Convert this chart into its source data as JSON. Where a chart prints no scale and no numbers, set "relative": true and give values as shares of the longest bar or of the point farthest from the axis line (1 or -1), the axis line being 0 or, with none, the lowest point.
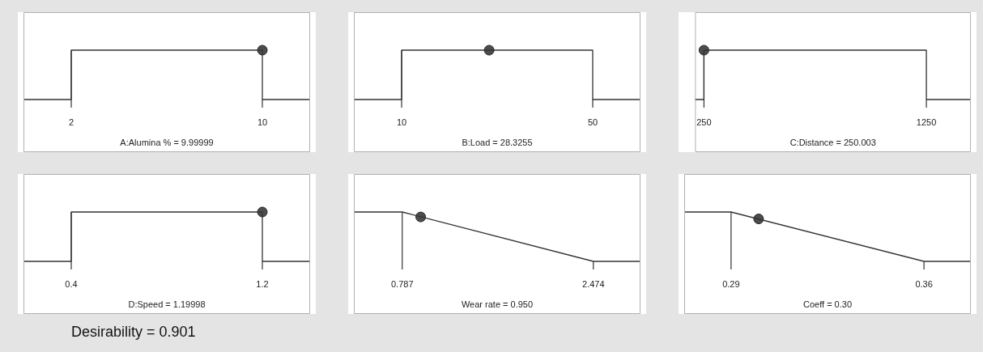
{
  "chart_data": [
    {
      "type": "line",
      "xlabel": "A:Alumina % = 9.99999",
      "relative": true,
      "xlim": [
        0,
        12
      ],
      "xticks": [
        2,
        10
      ],
      "series": [
        {
          "type": "line",
          "color": "#333333",
          "marker": "none",
          "x": [
            0,
            2,
            2,
            10,
            10,
            12
          ],
          "values": [
            0,
            0,
            1,
            1,
            0,
            0
          ]
        },
        {
          "type": "scatter",
          "color": "#4d4d4d",
          "marker": "circle",
          "x": [
            9.99999
          ],
          "values": [
            1
          ]
        }
      ]
    },
    {
      "type": "line",
      "xlabel": "B:Load = 28.3255",
      "relative": true,
      "xlim": [
        0,
        60
      ],
      "xticks": [
        10,
        50
      ],
      "series": [
        {
          "type": "line",
          "color": "#333333",
          "marker": "none",
          "x": [
            0,
            10,
            10,
            50,
            50,
            60
          ],
          "values": [
            0,
            0,
            1,
            1,
            0,
            0
          ]
        },
        {
          "type": "scatter",
          "color": "#4d4d4d",
          "marker": "circle",
          "x": [
            28.3255
          ],
          "values": [
            1
          ]
        }
      ]
    },
    {
      "type": "line",
      "xlabel": "C:Distance = 250.003",
      "relative": true,
      "xlim": [
        210,
        1450
      ],
      "xticks": [
        250,
        1250
      ],
      "series": [
        {
          "type": "line",
          "color": "#333333",
          "marker": "none",
          "x": [
            210,
            250,
            250,
            1250,
            1250,
            1450
          ],
          "values": [
            0,
            0,
            1,
            1,
            0,
            0
          ]
        },
        {
          "type": "scatter",
          "color": "#4d4d4d",
          "marker": "circle",
          "x": [
            250.003
          ],
          "values": [
            1
          ]
        }
      ]
    },
    {
      "type": "line",
      "xlabel": "D:Speed = 1.19998",
      "relative": true,
      "xlim": [
        0.2,
        1.4
      ],
      "xticks": [
        0.4,
        1.2
      ],
      "series": [
        {
          "type": "line",
          "color": "#333333",
          "marker": "none",
          "x": [
            0.2,
            0.4,
            0.4,
            1.2,
            1.2,
            1.4
          ],
          "values": [
            0,
            0,
            1,
            1,
            0,
            0
          ]
        },
        {
          "type": "scatter",
          "color": "#4d4d4d",
          "marker": "circle",
          "x": [
            1.19998
          ],
          "values": [
            1
          ]
        }
      ]
    },
    {
      "type": "line",
      "xlabel": "Wear rate = 0.950",
      "relative": true,
      "xlim": [
        0.36,
        2.89
      ],
      "xticks": [
        0.787,
        2.474
      ],
      "series": [
        {
          "type": "line",
          "color": "#333333",
          "marker": "none",
          "x": [
            0.36,
            0.787,
            2.474,
            2.89
          ],
          "values": [
            1,
            1,
            0,
            0
          ]
        },
        {
          "type": "scatter",
          "color": "#4d4d4d",
          "marker": "circle",
          "x": [
            0.95
          ],
          "values": [
            0.9
          ]
        }
      ]
    },
    {
      "type": "line",
      "xlabel": "Coeff = 0.30",
      "relative": true,
      "xlim": [
        0.273,
        0.377
      ],
      "xticks": [
        0.29,
        0.36
      ],
      "series": [
        {
          "type": "line",
          "color": "#333333",
          "marker": "none",
          "x": [
            0.273,
            0.29,
            0.36,
            0.377
          ],
          "values": [
            1,
            1,
            0,
            0
          ]
        },
        {
          "type": "scatter",
          "color": "#4d4d4d",
          "marker": "circle",
          "x": [
            0.3
          ],
          "values": [
            0.86
          ]
        }
      ]
    },
    {
      "type": "other",
      "title": "Desirability = 0.901"
    }
  ]
}
